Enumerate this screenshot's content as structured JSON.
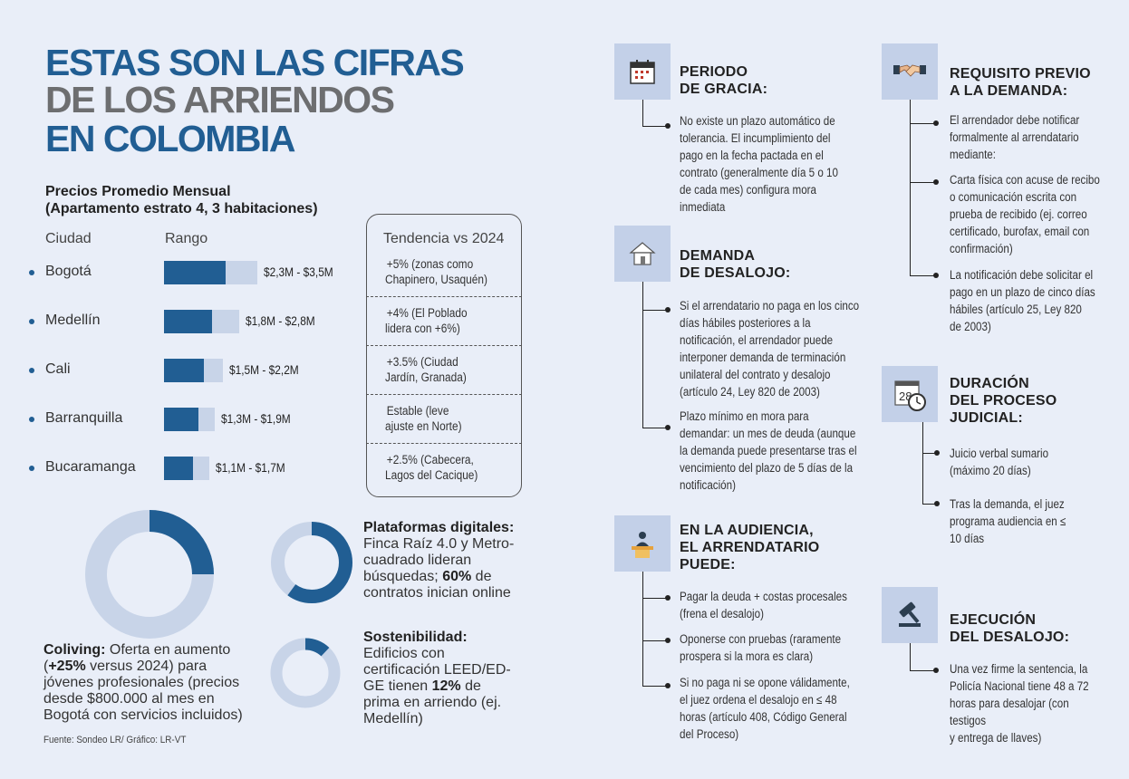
{
  "title": {
    "line1": "ESTAS SON LAS CIFRAS",
    "line2": "DE LOS ARRIENDOS",
    "line3": "EN COLOMBIA"
  },
  "subtitle": {
    "line1": "Precios Promedio Mensual",
    "line2": "(Apartamento estrato 4, 3 habitaciones)"
  },
  "table_headers": {
    "city": "Ciudad",
    "range": "Rango",
    "trend": "Tendencia vs 2024"
  },
  "chart_data": {
    "type": "bar",
    "categories": [
      "Bogotá",
      "Medellín",
      "Cali",
      "Barranquilla",
      "Bucaramanga"
    ],
    "series": [
      {
        "values": [
          2.3,
          1.8,
          1.5,
          1.3,
          1.1
        ]
      },
      {
        "values": [
          3.5,
          2.8,
          2.2,
          1.9,
          1.7
        ]
      }
    ],
    "range_labels": [
      "$2,3M - $3,5M",
      "$1,8M - $2,8M",
      "$1,5M - $2,2M",
      "$1,3M - $1,9M",
      "$1,1M - $1,7M"
    ],
    "trends": [
      [
        "+5% (zonas como",
        "Chapinero, Usaquén)"
      ],
      [
        "+4% (El Poblado",
        "lidera con +6%)"
      ],
      [
        "+3.5% (Ciudad",
        "Jardín, Granada)"
      ],
      [
        "Estable (leve",
        "ajuste en Norte)"
      ],
      [
        "+2.5% (Cabecera,",
        "Lagos del Cacique)"
      ]
    ],
    "colors": {
      "min": "#215e93",
      "max": "#c8d4e8"
    }
  },
  "donuts": [
    {
      "label_bold": "Coliving:",
      "text_parts": [
        "Oferta en aumento",
        "(",
        "+25%",
        " versus 2024) para",
        "jóvenes profesionales (precios",
        "desde $800.000 al mes en",
        "Bogotá con servicios incluidos)"
      ],
      "fraction": 0.25
    },
    {
      "label_bold": "Plataformas digitales:",
      "lines": [
        "Finca Raíz 4.0 y Metro-",
        "cuadrado lideran",
        "búsquedas; ",
        "60%",
        " de",
        "contratos inician online"
      ],
      "fraction": 0.6
    },
    {
      "label_bold": "Sostenibilidad:",
      "lines": [
        "Edificios con",
        "certificación LEED/ED-",
        "GE tienen ",
        "12%",
        " de",
        "prima en arriendo (ej.",
        "Medellín)"
      ],
      "fraction": 0.12
    }
  ],
  "source": "Fuente: Sondeo LR/ Gráfico: LR-VT",
  "sections": {
    "periodo": {
      "title": [
        "PERIODO",
        "DE GRACIA:"
      ],
      "icon": "calendar-icon",
      "items": [
        [
          "No existe un plazo automático de",
          "tolerancia. El incumplimiento del",
          "pago en la fecha pactada en el",
          "contrato (generalmente día 5 o 10",
          "de cada mes) configura mora",
          "inmediata"
        ]
      ]
    },
    "demanda": {
      "title": [
        "DEMANDA",
        "DE DESALOJO:"
      ],
      "icon": "house-icon",
      "items": [
        [
          "Si el arrendatario no paga en los cinco",
          "días hábiles posteriores a la",
          "notificación, el arrendador puede",
          "interponer demanda de terminación",
          "unilateral del contrato y desalojo",
          "(artículo 24, Ley 820 de 2003)"
        ],
        [
          "Plazo mínimo en mora para",
          "demandar: un mes de deuda (aunque",
          "la demanda puede presentarse tras el",
          "vencimiento del plazo de 5 días de la",
          "notificación)"
        ]
      ]
    },
    "audiencia": {
      "title": [
        "EN LA AUDIENCIA,",
        "EL ARRENDATARIO",
        "PUEDE:"
      ],
      "icon": "speaker-podium-icon",
      "items": [
        [
          "Pagar la deuda + costas procesales",
          "(frena el desalojo)"
        ],
        [
          "Oponerse con pruebas (raramente",
          "prospera si la mora es clara)"
        ],
        [
          "Si no paga ni se opone válidamente,",
          "el juez ordena el desalojo en ≤ 48",
          "horas (artículo 408, Código General",
          "del Proceso)"
        ]
      ]
    },
    "requisito": {
      "title": [
        "REQUISITO PREVIO",
        "A LA DEMANDA:"
      ],
      "icon": "handshake-icon",
      "items": [
        [
          "El arrendador debe notificar",
          "formalmente al arrendatario",
          "mediante:"
        ],
        [
          "Carta física con acuse de recibo",
          "o comunicación escrita con",
          "prueba de recibido (ej. correo",
          "certificado, burofax, email con",
          "confirmación)"
        ],
        [
          "La notificación debe solicitar el",
          "pago en un plazo de cinco días",
          "hábiles (artículo 25, Ley 820",
          "de 2003)"
        ]
      ]
    },
    "duracion": {
      "title": [
        "DURACIÓN",
        "DEL PROCESO",
        "JUDICIAL:"
      ],
      "icon": "calendar-clock-icon",
      "calendar_number": "28",
      "items": [
        [
          "Juicio verbal sumario",
          "(máximo 20 días)"
        ],
        [
          "Tras la demanda, el juez",
          "programa audiencia en ≤",
          "10 días"
        ]
      ]
    },
    "ejecucion": {
      "title": [
        "EJECUCIÓN",
        "DEL DESALOJO:"
      ],
      "icon": "gavel-icon",
      "items": [
        [
          "Una vez firme la sentencia, la",
          "Policía Nacional tiene 48 a 72",
          "horas para desalojar (con testigos",
          "y entrega de llaves)"
        ]
      ]
    }
  }
}
